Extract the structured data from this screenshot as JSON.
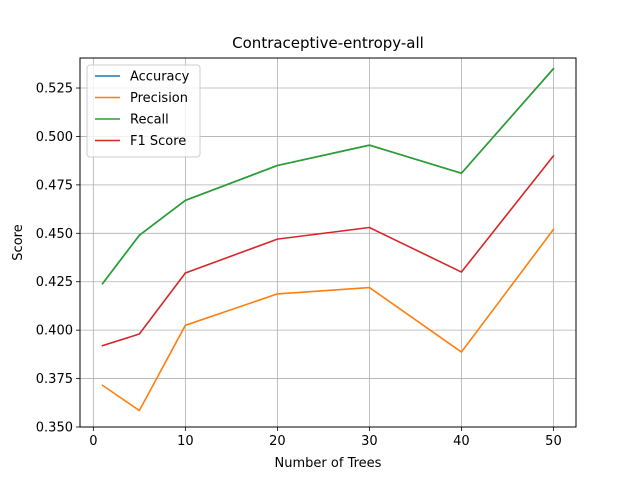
{
  "chart_data": {
    "type": "line",
    "title": "Contraceptive-entropy-all",
    "xlabel": "Number of Trees",
    "ylabel": "Score",
    "x": [
      1,
      5,
      10,
      20,
      30,
      40,
      50
    ],
    "xlim": [
      -1.45,
      52.45
    ],
    "ylim": [
      0.35,
      0.5405
    ],
    "xticks": [
      0,
      10,
      20,
      30,
      40,
      50
    ],
    "yticks": [
      0.35,
      0.375,
      0.4,
      0.425,
      0.45,
      0.475,
      0.5,
      0.525
    ],
    "ytick_labels": [
      "0.350",
      "0.375",
      "0.400",
      "0.425",
      "0.450",
      "0.475",
      "0.500",
      "0.525"
    ],
    "grid": true,
    "legend_position": "top-left",
    "series": [
      {
        "name": "Accuracy",
        "color": "#1f77b4",
        "values": [
          0.424,
          0.449,
          0.467,
          0.485,
          0.4955,
          0.481,
          0.535
        ]
      },
      {
        "name": "Precision",
        "color": "#ff7f0e",
        "values": [
          0.3715,
          0.3585,
          0.4025,
          0.4187,
          0.422,
          0.3887,
          0.452
        ]
      },
      {
        "name": "Recall",
        "color": "#2ca02c",
        "values": [
          0.424,
          0.449,
          0.467,
          0.485,
          0.4955,
          0.481,
          0.535
        ]
      },
      {
        "name": "F1 Score",
        "color": "#d62728",
        "values": [
          0.392,
          0.398,
          0.4295,
          0.447,
          0.453,
          0.43,
          0.49
        ]
      }
    ]
  }
}
